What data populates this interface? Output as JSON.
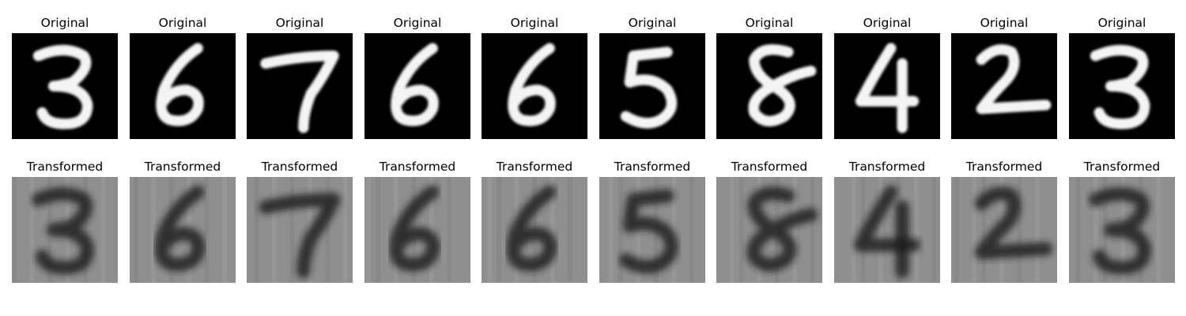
{
  "figure": {
    "rows": [
      {
        "name": "original",
        "label": "Original",
        "style": {
          "background": "#000000",
          "stroke": "#f4f4f4"
        }
      },
      {
        "name": "transformed",
        "label": "Transformed",
        "style": {
          "background": "#8f8f8f",
          "stroke": "#1e1e1e"
        }
      }
    ],
    "digits": [
      "3",
      "6",
      "7",
      "6",
      "6",
      "5",
      "8",
      "4",
      "2",
      "3"
    ]
  }
}
